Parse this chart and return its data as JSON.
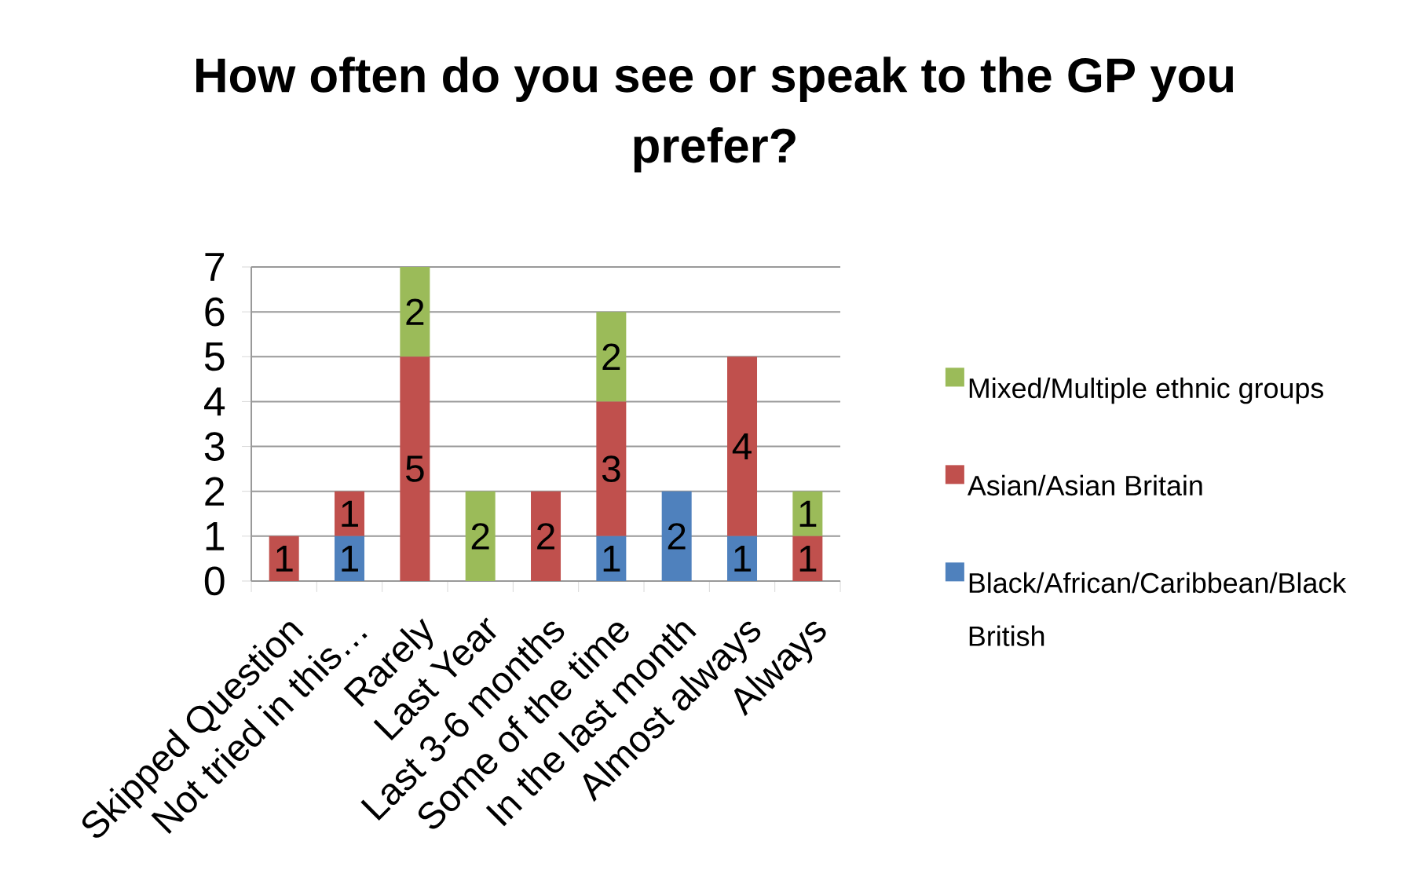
{
  "chart_data": {
    "type": "bar",
    "title": "How often do you see or speak to the GP you prefer?",
    "categories": [
      "Skipped Question",
      "Not tried in this…",
      "Rarely",
      "Last Year",
      "Last 3-6 months",
      "Some of the time",
      "In the last month",
      "Almost always",
      "Always"
    ],
    "series": [
      {
        "name": "Black/African/Caribbean/Black British",
        "color": "#4f81bd",
        "values": [
          null,
          1,
          null,
          null,
          null,
          1,
          2,
          1,
          null
        ]
      },
      {
        "name": "Asian/Asian Britain",
        "color": "#c0504d",
        "values": [
          1,
          1,
          5,
          null,
          2,
          3,
          null,
          4,
          1
        ]
      },
      {
        "name": "Mixed/Multiple ethnic groups",
        "color": "#9bbb59",
        "values": [
          null,
          null,
          2,
          2,
          null,
          2,
          null,
          null,
          1
        ]
      }
    ],
    "stacked": true,
    "ylim": [
      0,
      7
    ],
    "yticks": [
      0,
      1,
      2,
      3,
      4,
      5,
      6,
      7
    ],
    "grid": "y",
    "legend": "right",
    "data_labels": true
  }
}
